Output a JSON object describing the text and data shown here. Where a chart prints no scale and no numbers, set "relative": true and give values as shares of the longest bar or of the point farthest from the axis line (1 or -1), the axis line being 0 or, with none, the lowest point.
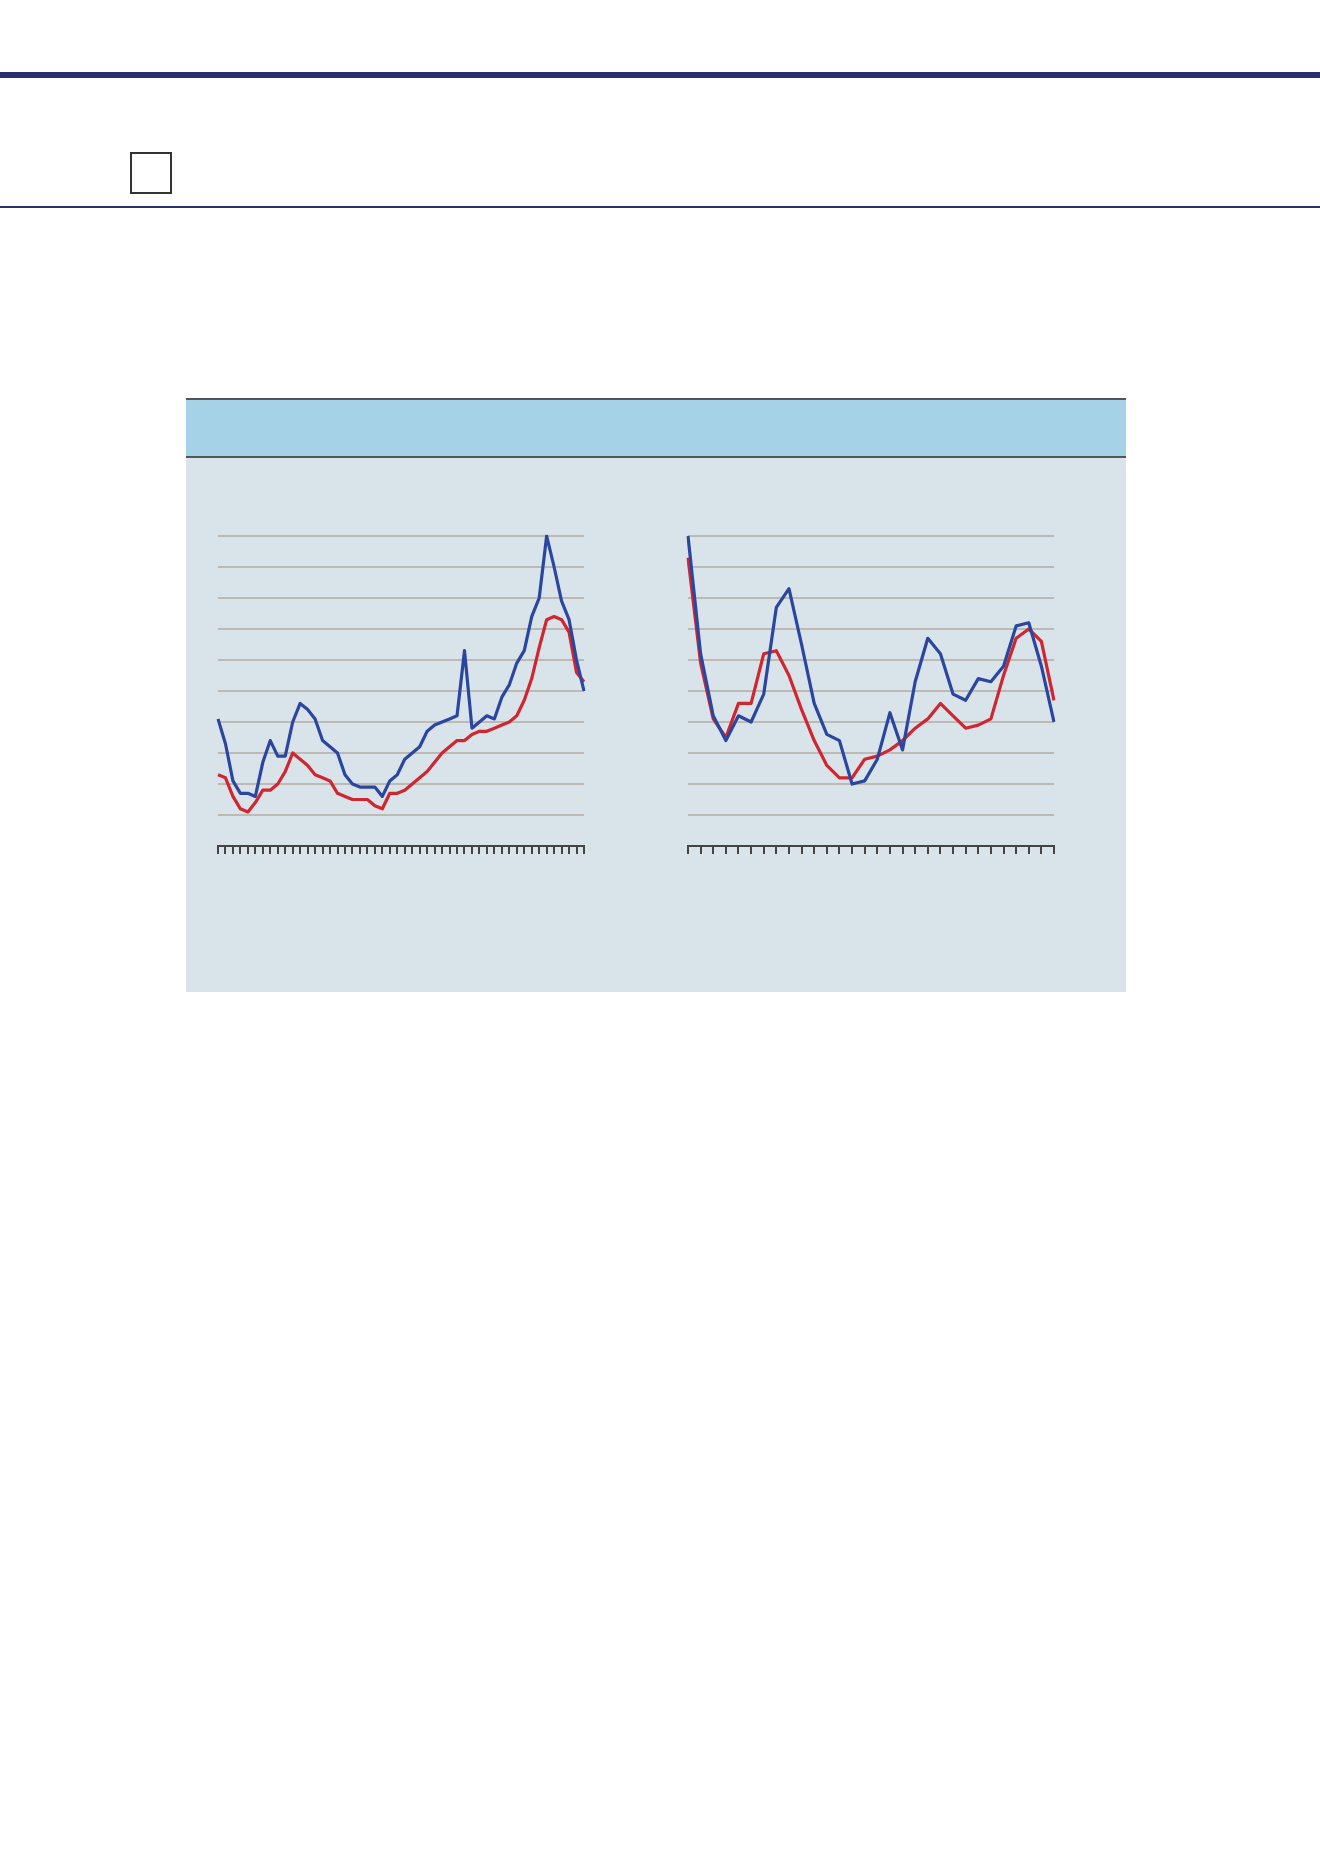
{
  "chart_data": [
    {
      "type": "line",
      "relative": true,
      "grid": "y",
      "legend": false,
      "tick_labels": false,
      "marker": "none",
      "categories": [
        null,
        null,
        null,
        null,
        null,
        null,
        null,
        null,
        null,
        null,
        null,
        null,
        null,
        null,
        null,
        null,
        null,
        null,
        null,
        null,
        null,
        null,
        null,
        null,
        null,
        null,
        null,
        null,
        null,
        null,
        null,
        null,
        null,
        null,
        null,
        null,
        null,
        null,
        null,
        null,
        null,
        null,
        null,
        null,
        null,
        null,
        null,
        null,
        null,
        null
      ],
      "series": [
        {
          "color": "#2b46a0",
          "values": [
            0.41,
            0.33,
            0.21,
            0.17,
            0.17,
            0.16,
            0.27,
            0.34,
            0.29,
            0.29,
            0.4,
            0.46,
            0.44,
            0.41,
            0.34,
            0.32,
            0.3,
            0.23,
            0.2,
            0.19,
            0.19,
            0.19,
            0.16,
            0.21,
            0.23,
            0.28,
            0.3,
            0.32,
            0.37,
            0.39,
            0.4,
            0.41,
            0.42,
            0.63,
            0.38,
            0.4,
            0.42,
            0.41,
            0.48,
            0.52,
            0.59,
            0.63,
            0.74,
            0.8,
            1,
            0.9,
            0.79,
            0.73,
            0.6,
            0.5
          ]
        },
        {
          "color": "#d0262f",
          "values": [
            0.23,
            0.22,
            0.16,
            0.12,
            0.11,
            0.14,
            0.18,
            0.18,
            0.2,
            0.24,
            0.3,
            0.28,
            0.26,
            0.23,
            0.22,
            0.21,
            0.17,
            0.16,
            0.15,
            0.15,
            0.15,
            0.13,
            0.12,
            0.17,
            0.17,
            0.18,
            0.2,
            0.22,
            0.24,
            0.27,
            0.3,
            0.32,
            0.34,
            0.34,
            0.36,
            0.37,
            0.37,
            0.38,
            0.39,
            0.4,
            0.42,
            0.47,
            0.54,
            0.64,
            0.73,
            0.74,
            0.73,
            0.69,
            0.56,
            0.53
          ]
        }
      ]
    },
    {
      "type": "line",
      "relative": true,
      "grid": "y",
      "legend": false,
      "tick_labels": false,
      "marker": "none",
      "categories": [
        null,
        null,
        null,
        null,
        null,
        null,
        null,
        null,
        null,
        null,
        null,
        null,
        null,
        null,
        null,
        null,
        null,
        null,
        null,
        null,
        null,
        null,
        null,
        null,
        null,
        null,
        null,
        null,
        null,
        null
      ],
      "series": [
        {
          "color": "#2b46a0",
          "values": [
            1,
            0.62,
            0.42,
            0.34,
            0.42,
            0.4,
            0.49,
            0.77,
            0.83,
            0.65,
            0.46,
            0.36,
            0.34,
            0.2,
            0.21,
            0.28,
            0.43,
            0.31,
            0.53,
            0.67,
            0.62,
            0.49,
            0.47,
            0.54,
            0.53,
            0.58,
            0.71,
            0.72,
            0.58,
            0.4
          ]
        },
        {
          "color": "#d0262f",
          "values": [
            0.93,
            0.59,
            0.41,
            0.35,
            0.46,
            0.46,
            0.62,
            0.63,
            0.55,
            0.44,
            0.34,
            0.26,
            0.22,
            0.22,
            0.28,
            0.29,
            0.31,
            0.34,
            0.38,
            0.41,
            0.46,
            0.42,
            0.38,
            0.39,
            0.41,
            0.55,
            0.67,
            0.7,
            0.66,
            0.47
          ]
        }
      ]
    }
  ]
}
